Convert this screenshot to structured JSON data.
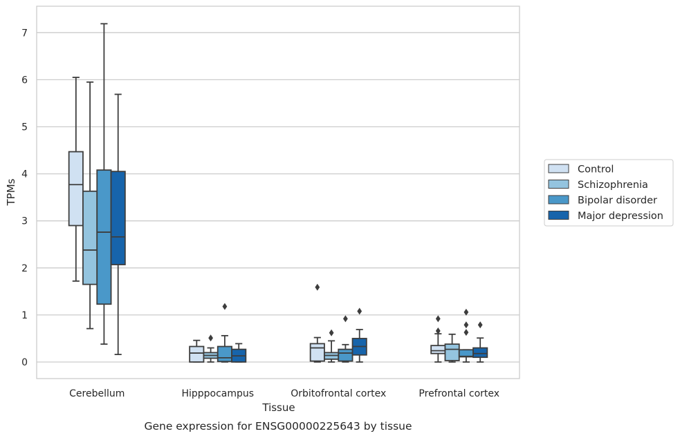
{
  "chart_data": {
    "type": "box",
    "caption": "Gene expression for ENSG00000225643 by tissue",
    "xlabel": "Tissue",
    "ylabel": "TPMs",
    "ylim": [
      -0.35,
      7.55
    ],
    "yticks": [
      0,
      1,
      2,
      3,
      4,
      5,
      6,
      7
    ],
    "grid": true,
    "legend_position": "right",
    "categories": [
      "Cerebellum",
      "Hipppocampus",
      "Orbitofrontal cortex",
      "Prefrontal cortex"
    ],
    "series": [
      {
        "name": "Control",
        "color": "#d0e1f2",
        "boxes": [
          {
            "whislo": 1.72,
            "q1": 2.9,
            "med": 3.77,
            "q3": 4.47,
            "whishi": 6.05,
            "fliers": []
          },
          {
            "whislo": 0.0,
            "q1": 0.0,
            "med": 0.19,
            "q3": 0.33,
            "whishi": 0.46,
            "fliers": []
          },
          {
            "whislo": 0.0,
            "q1": 0.02,
            "med": 0.3,
            "q3": 0.39,
            "whishi": 0.52,
            "fliers": [
              1.59
            ]
          },
          {
            "whislo": 0.0,
            "q1": 0.18,
            "med": 0.24,
            "q3": 0.35,
            "whishi": 0.6,
            "fliers": [
              0.66,
              0.92
            ]
          }
        ]
      },
      {
        "name": "Schizophrenia",
        "color": "#94c4df",
        "boxes": [
          {
            "whislo": 0.71,
            "q1": 1.65,
            "med": 2.38,
            "q3": 3.63,
            "whishi": 5.95,
            "fliers": []
          },
          {
            "whislo": 0.0,
            "q1": 0.08,
            "med": 0.14,
            "q3": 0.2,
            "whishi": 0.3,
            "fliers": [
              0.51
            ]
          },
          {
            "whislo": 0.0,
            "q1": 0.06,
            "med": 0.14,
            "q3": 0.2,
            "whishi": 0.45,
            "fliers": [
              0.62
            ]
          },
          {
            "whislo": 0.0,
            "q1": 0.03,
            "med": 0.27,
            "q3": 0.38,
            "whishi": 0.59,
            "fliers": []
          }
        ]
      },
      {
        "name": "Bipolar disorder",
        "color": "#4a98c9",
        "boxes": [
          {
            "whislo": 0.38,
            "q1": 1.23,
            "med": 2.76,
            "q3": 4.08,
            "whishi": 7.19,
            "fliers": []
          },
          {
            "whislo": 0.0,
            "q1": 0.01,
            "med": 0.09,
            "q3": 0.33,
            "whishi": 0.56,
            "fliers": [
              1.18
            ]
          },
          {
            "whislo": 0.0,
            "q1": 0.02,
            "med": 0.19,
            "q3": 0.27,
            "whishi": 0.37,
            "fliers": [
              0.92
            ]
          },
          {
            "whislo": 0.0,
            "q1": 0.11,
            "med": 0.12,
            "q3": 0.26,
            "whishi": 0.26,
            "fliers": [
              0.63,
              0.79,
              1.06
            ]
          }
        ]
      },
      {
        "name": "Major depression",
        "color": "#1764ab",
        "boxes": [
          {
            "whislo": 0.16,
            "q1": 2.07,
            "med": 2.66,
            "q3": 4.05,
            "whishi": 5.69,
            "fliers": []
          },
          {
            "whislo": 0.0,
            "q1": 0.0,
            "med": 0.13,
            "q3": 0.27,
            "whishi": 0.39,
            "fliers": []
          },
          {
            "whislo": 0.0,
            "q1": 0.15,
            "med": 0.33,
            "q3": 0.5,
            "whishi": 0.69,
            "fliers": [
              1.08
            ]
          },
          {
            "whislo": 0.0,
            "q1": 0.1,
            "med": 0.18,
            "q3": 0.3,
            "whishi": 0.51,
            "fliers": [
              0.79
            ]
          }
        ]
      }
    ]
  }
}
